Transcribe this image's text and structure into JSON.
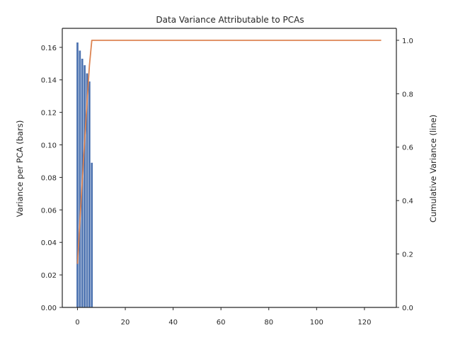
{
  "chart_data": {
    "type": "bar",
    "title": "Data Variance Attributable to PCAs",
    "ylabel": "Variance per PCA (bars)",
    "ylabel_right": "Cumulative Variance (line)",
    "xlim": [
      -6.35,
      133.35
    ],
    "ylim": [
      0,
      0.1717
    ],
    "ylim_right": [
      0,
      1.0448
    ],
    "xticks": [
      0,
      20,
      40,
      60,
      80,
      100,
      120
    ],
    "yticks": [
      0.0,
      0.02,
      0.04,
      0.06,
      0.08,
      0.1,
      0.12,
      0.14,
      0.16
    ],
    "yticks_right": [
      0.0,
      0.2,
      0.4,
      0.6,
      0.8,
      1.0
    ],
    "grid": false,
    "series": [
      {
        "kind": "bar",
        "axis": "left",
        "color": "#4c72b0",
        "x": [
          0,
          1,
          2,
          3,
          4,
          5,
          6
        ],
        "values": [
          0.163,
          0.158,
          0.153,
          0.149,
          0.144,
          0.139,
          0.089
        ]
      },
      {
        "kind": "line",
        "axis": "right",
        "color": "#dd8452",
        "x": [
          0,
          1,
          2,
          3,
          4,
          5,
          6,
          127
        ],
        "values": [
          0.163,
          0.321,
          0.474,
          0.623,
          0.767,
          0.906,
          1.0,
          1.0
        ]
      }
    ]
  }
}
